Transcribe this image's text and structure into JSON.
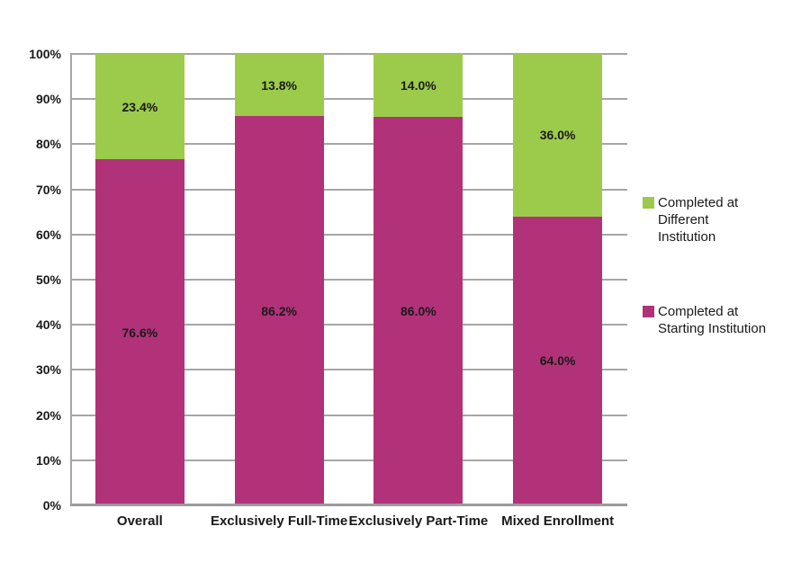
{
  "figure": {
    "background": "#FFFFFF",
    "text_color": "#1a1a1a"
  },
  "chart_data": {
    "type": "bar",
    "stacked": true,
    "title": "",
    "xlabel": "",
    "ylabel": "",
    "categories": [
      "Overall",
      "Exclusively Full-Time",
      "Exclusively Part-Time",
      "Mixed Enrollment"
    ],
    "series": [
      {
        "name": "Completed at Starting Institution",
        "color": "#B13278",
        "values": [
          76.6,
          86.2,
          86.0,
          64.0
        ],
        "labels": [
          "76.6%",
          "86.2%",
          "86.0%",
          "64.0%"
        ]
      },
      {
        "name": "Completed at Different Institution",
        "color": "#9CCB4C",
        "values": [
          23.4,
          13.8,
          14.0,
          36.0
        ],
        "labels": [
          "23.4%",
          "13.8%",
          "14.0%",
          "36.0%"
        ]
      }
    ],
    "bar_width_pct": 16,
    "yaxis": {
      "min": 0,
      "max": 100,
      "step": 10,
      "tick_labels": [
        "0%",
        "10%",
        "20%",
        "30%",
        "40%",
        "50%",
        "60%",
        "70%",
        "80%",
        "90%",
        "100%"
      ],
      "gridlines": true,
      "gridline_color": "#A6A6A6",
      "axis_color": "#9B9B9B"
    },
    "legend": {
      "position": "right",
      "items": [
        {
          "swatch_color": "#9CCB4C",
          "label": "Completed at Different Institution",
          "lines": [
            "Completed at",
            "Different",
            "Institution"
          ]
        },
        {
          "swatch_color": "#B13278",
          "label": "Completed at Starting Institution",
          "lines": [
            "Completed at",
            "Starting Institution"
          ]
        }
      ]
    }
  }
}
